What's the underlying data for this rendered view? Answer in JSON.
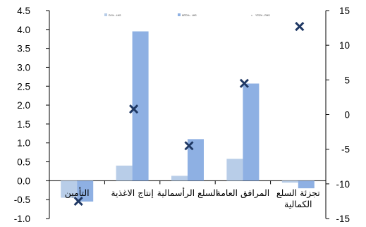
{
  "chart_data": {
    "type": "bar",
    "categories": [
      "التأمين",
      "إنتاج الاغذية",
      "السلع الرأسمالية",
      "المرافق العامة",
      "تجزئة السلع الكمالية"
    ],
    "category_lines": [
      [
        "التأمين"
      ],
      [
        "إنتاج الاغذية"
      ],
      [
        "السلع الرأسمالية"
      ],
      [
        "المرافق العامة"
      ],
      [
        "تجزئة السلع",
        "الكمالية"
      ]
    ],
    "series": [
      {
        "name": "D1% - LHS",
        "axis": "left",
        "type": "bar",
        "color": "#b8cde8",
        "values": [
          -0.45,
          0.4,
          0.13,
          0.58,
          -0.05
        ]
      },
      {
        "name": "MTD% - LHS",
        "axis": "left",
        "type": "bar",
        "color": "#8eb0e3",
        "values": [
          -0.55,
          3.95,
          1.1,
          2.57,
          -0.2
        ]
      },
      {
        "name": "YTD% - RHS",
        "axis": "right",
        "type": "scatter",
        "marker": "x",
        "color": "#1f3864",
        "values": [
          -12.5,
          0.8,
          -4.5,
          4.5,
          12.7
        ]
      }
    ],
    "left_axis": {
      "ylim": [
        -1.0,
        4.5
      ],
      "ticks": [
        "4.5",
        "4.0",
        "3.5",
        "3.0",
        "2.5",
        "2.0",
        "1.5",
        "1.0",
        "0.5",
        "0.0",
        "-0.5",
        "-1.0"
      ]
    },
    "right_axis": {
      "ylim": [
        -15,
        15
      ],
      "ticks": [
        "15",
        "10",
        "5",
        "0",
        "-5",
        "-10",
        "-15"
      ]
    },
    "legend": {
      "placement": "top"
    },
    "grid": false
  }
}
